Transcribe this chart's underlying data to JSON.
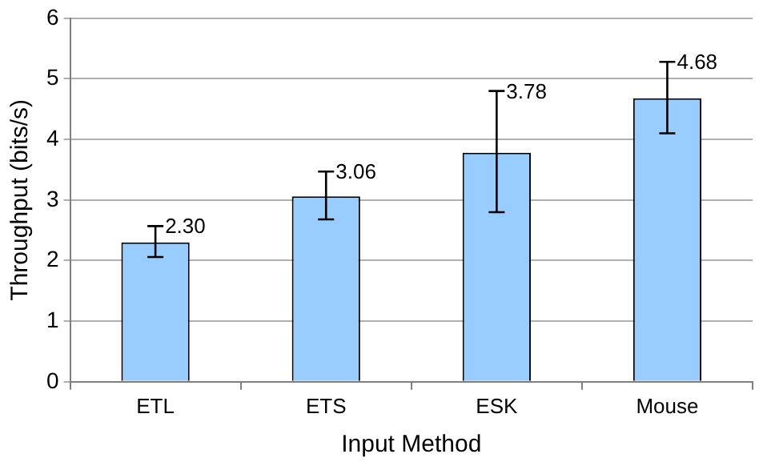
{
  "chart_data": {
    "type": "bar",
    "xlabel": "Input Method",
    "ylabel": "Throughput (bits/s)",
    "categories": [
      "ETL",
      "ETS",
      "ESK",
      "Mouse"
    ],
    "values": [
      2.3,
      3.06,
      3.78,
      4.68
    ],
    "errors": [
      [
        2.06,
        2.57
      ],
      [
        2.68,
        3.47
      ],
      [
        2.8,
        4.8
      ],
      [
        4.1,
        5.28
      ]
    ],
    "value_labels": [
      "2.30",
      "3.06",
      "3.78",
      "4.68"
    ],
    "color": "#99ccff",
    "ylim": [
      0,
      6
    ],
    "yticks": [
      0,
      1,
      2,
      3,
      4,
      5,
      6
    ],
    "grid": "y",
    "legend": false
  }
}
